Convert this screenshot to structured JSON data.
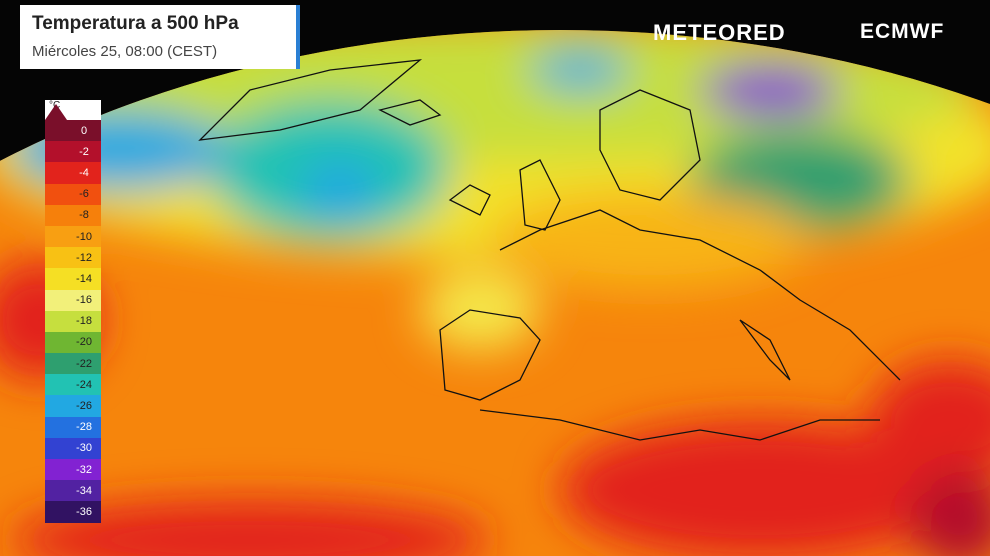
{
  "header": {
    "title": "Temperatura a 500 hPa",
    "subtitle": "Miércoles 25, 08:00 (CEST)"
  },
  "brands": {
    "left": "METEORED",
    "right": "ECMWF"
  },
  "legend": {
    "unit": "°C",
    "items": [
      {
        "label": 0,
        "color": "#7a0f2a"
      },
      {
        "label": -2,
        "color": "#b3102b"
      },
      {
        "label": -4,
        "color": "#e2231c"
      },
      {
        "label": -6,
        "color": "#f1500f"
      },
      {
        "label": -8,
        "color": "#f6800b"
      },
      {
        "label": -10,
        "color": "#f89f12"
      },
      {
        "label": -12,
        "color": "#f8c114"
      },
      {
        "label": -14,
        "color": "#f5df24"
      },
      {
        "label": -16,
        "color": "#f2f07a"
      },
      {
        "label": -18,
        "color": "#c6df3e"
      },
      {
        "label": -20,
        "color": "#6fb632"
      },
      {
        "label": -22,
        "color": "#2e9f6f"
      },
      {
        "label": -24,
        "color": "#22c2b3"
      },
      {
        "label": -26,
        "color": "#22a8e2"
      },
      {
        "label": -28,
        "color": "#2371e0"
      },
      {
        "label": -30,
        "color": "#3242d2"
      },
      {
        "label": -32,
        "color": "#8222d2"
      },
      {
        "label": -34,
        "color": "#5222a2"
      },
      {
        "label": -36,
        "color": "#311262"
      }
    ]
  }
}
